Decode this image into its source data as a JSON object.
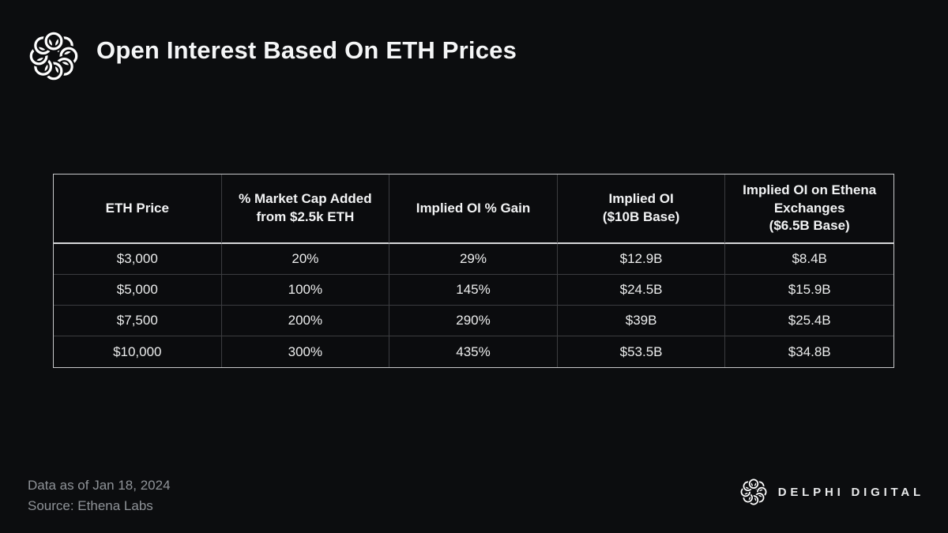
{
  "chart_data": {
    "type": "table",
    "title": "Open Interest Based On ETH Prices",
    "columns": [
      "ETH Price",
      "% Market Cap Added\nfrom $2.5k ETH",
      "Implied OI % Gain",
      "Implied OI\n($10B Base)",
      "Implied OI on Ethena\nExchanges\n($6.5B Base)"
    ],
    "rows": [
      [
        "$3,000",
        "20%",
        "29%",
        "$12.9B",
        "$8.4B"
      ],
      [
        "$5,000",
        "100%",
        "145%",
        "$24.5B",
        "$15.9B"
      ],
      [
        "$7,500",
        "200%",
        "290%",
        "$39B",
        "$25.4B"
      ],
      [
        "$10,000",
        "300%",
        "435%",
        "$53.5B",
        "$34.8B"
      ]
    ]
  },
  "footer": {
    "data_as_of": "Data as of Jan 18, 2024",
    "source": "Source: Ethena Labs",
    "brand_wordmark": "DELPHI DIGITAL"
  },
  "icons": {
    "header_logo": "delphi-knot-logo",
    "footer_logo": "delphi-knot-icon"
  },
  "colors": {
    "background": "#0c0d0f",
    "table_outer_border": "#c7c8ca",
    "table_inner_line": "#3c3d40",
    "header_underline": "#d6d7d9",
    "title_text": "#f5f6f7",
    "table_text": "#eceded",
    "footer_text": "#8f9398",
    "logo": "#ffffff"
  }
}
